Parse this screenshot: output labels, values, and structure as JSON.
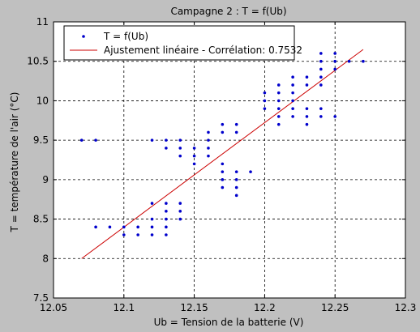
{
  "chart_data": {
    "type": "scatter",
    "title": "Campagne 2 : T = f(Ub)",
    "xlabel": "Ub = Tension de la batterie (V)",
    "ylabel": "T = température de l'air (°C)",
    "xlim": [
      12.05,
      12.3
    ],
    "ylim": [
      7.5,
      11
    ],
    "xticks": [
      "12.05",
      "12.1",
      "12.15",
      "12.2",
      "12.25",
      "12.3"
    ],
    "yticks": [
      "7.5",
      "8",
      "8.5",
      "9",
      "9.5",
      "10",
      "10.5",
      "11"
    ],
    "grid": true,
    "legend_position": "top-left",
    "colors": {
      "points": "#0000cc",
      "fit": "#cc0000",
      "background": "#c0c0c0",
      "plot": "#ffffff"
    },
    "series": [
      {
        "name": "T = f(Ub)",
        "kind": "scatter",
        "points": [
          [
            12.07,
            9.5
          ],
          [
            12.08,
            9.5
          ],
          [
            12.08,
            8.4
          ],
          [
            12.09,
            8.4
          ],
          [
            12.1,
            8.4
          ],
          [
            12.1,
            8.3
          ],
          [
            12.11,
            8.4
          ],
          [
            12.11,
            8.3
          ],
          [
            12.12,
            9.5
          ],
          [
            12.12,
            8.7
          ],
          [
            12.12,
            8.5
          ],
          [
            12.12,
            8.4
          ],
          [
            12.12,
            8.3
          ],
          [
            12.13,
            9.5
          ],
          [
            12.13,
            9.4
          ],
          [
            12.13,
            8.7
          ],
          [
            12.13,
            8.6
          ],
          [
            12.13,
            8.5
          ],
          [
            12.13,
            8.4
          ],
          [
            12.13,
            8.3
          ],
          [
            12.14,
            9.5
          ],
          [
            12.14,
            9.4
          ],
          [
            12.14,
            9.3
          ],
          [
            12.14,
            8.7
          ],
          [
            12.14,
            8.6
          ],
          [
            12.14,
            8.5
          ],
          [
            12.15,
            9.4
          ],
          [
            12.15,
            9.3
          ],
          [
            12.15,
            9.2
          ],
          [
            12.16,
            9.6
          ],
          [
            12.16,
            9.5
          ],
          [
            12.16,
            9.4
          ],
          [
            12.16,
            9.3
          ],
          [
            12.17,
            9.7
          ],
          [
            12.17,
            9.6
          ],
          [
            12.17,
            9.2
          ],
          [
            12.17,
            9.1
          ],
          [
            12.17,
            9.0
          ],
          [
            12.17,
            8.9
          ],
          [
            12.18,
            9.7
          ],
          [
            12.18,
            9.6
          ],
          [
            12.18,
            9.1
          ],
          [
            12.18,
            9.0
          ],
          [
            12.18,
            8.9
          ],
          [
            12.18,
            8.8
          ],
          [
            12.19,
            9.1
          ],
          [
            12.2,
            10.1
          ],
          [
            12.2,
            10.0
          ],
          [
            12.2,
            9.9
          ],
          [
            12.21,
            10.2
          ],
          [
            12.21,
            10.1
          ],
          [
            12.21,
            10.0
          ],
          [
            12.21,
            9.9
          ],
          [
            12.21,
            9.8
          ],
          [
            12.21,
            9.7
          ],
          [
            12.22,
            10.3
          ],
          [
            12.22,
            10.2
          ],
          [
            12.22,
            10.1
          ],
          [
            12.22,
            10.0
          ],
          [
            12.22,
            9.9
          ],
          [
            12.22,
            9.8
          ],
          [
            12.23,
            10.3
          ],
          [
            12.23,
            10.2
          ],
          [
            12.23,
            9.9
          ],
          [
            12.23,
            9.8
          ],
          [
            12.23,
            9.7
          ],
          [
            12.24,
            10.6
          ],
          [
            12.24,
            10.5
          ],
          [
            12.24,
            10.4
          ],
          [
            12.24,
            10.3
          ],
          [
            12.24,
            10.2
          ],
          [
            12.24,
            9.9
          ],
          [
            12.24,
            9.8
          ],
          [
            12.25,
            10.6
          ],
          [
            12.25,
            10.5
          ],
          [
            12.25,
            10.4
          ],
          [
            12.25,
            9.8
          ],
          [
            12.26,
            10.5
          ],
          [
            12.27,
            10.5
          ]
        ]
      },
      {
        "name": "Ajustement linéaire - Corrélation: 0.7532",
        "kind": "line",
        "points": [
          [
            12.07,
            8.0
          ],
          [
            12.27,
            10.65
          ]
        ]
      }
    ]
  }
}
